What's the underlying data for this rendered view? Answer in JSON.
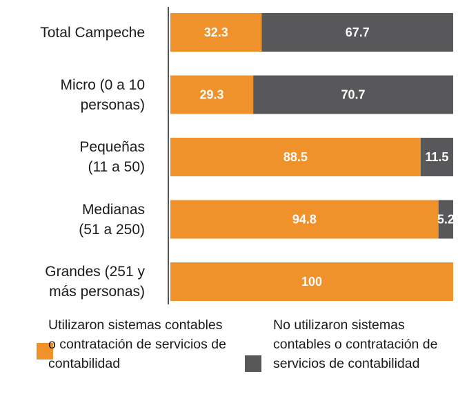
{
  "chart_data": {
    "type": "stacked-bar",
    "categories": [
      "Total Campeche",
      "Micro (0 a 10\npersonas)",
      "Pequeñas\n(11 a 50)",
      "Medianas\n(51 a 250)",
      "Grandes (251 y\nmás personas)"
    ],
    "series": [
      {
        "name": "Utilizaron sistemas contables o contratación de servicios de contabilidad",
        "color": "#f0922b",
        "values": [
          32.3,
          29.3,
          88.5,
          94.8,
          100
        ]
      },
      {
        "name": "No utilizaron sistemas contables o contratación de servicios de contabilidad",
        "color": "#58585a",
        "values": [
          67.7,
          70.7,
          11.5,
          5.2,
          null
        ]
      }
    ]
  }
}
